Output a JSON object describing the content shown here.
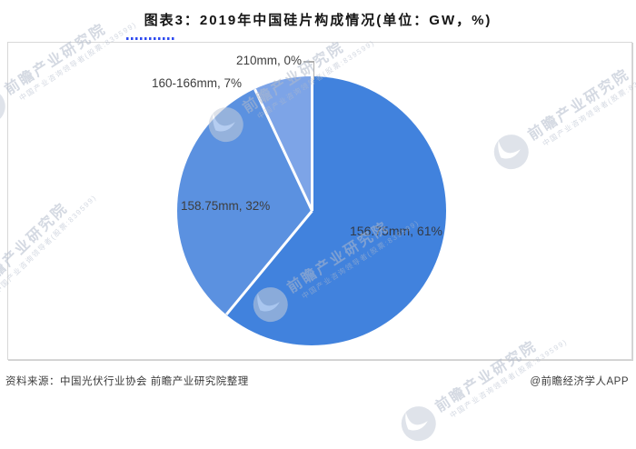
{
  "title": "图表3：2019年中国硅片构成情况(单位：GW，%)",
  "chart_data": {
    "type": "pie",
    "title": "2019年中国硅片构成情况",
    "unit": "GW，%",
    "start_angle_deg": 0,
    "direction": "clockwise",
    "legend": "none (direct data labels)",
    "separator_color": "#FFFFFF",
    "slices": [
      {
        "label": "156.75mm",
        "value": 61,
        "display": "156.75mm, 61%",
        "color": "#4182DD"
      },
      {
        "label": "158.75mm",
        "value": 32,
        "display": "158.75mm, 32%",
        "color": "#5B91E0"
      },
      {
        "label": "160-166mm",
        "value": 7,
        "display": "160-166mm, 7%",
        "color": "#7DA4E7"
      },
      {
        "label": "210mm",
        "value": 0,
        "display": "210mm, 0%",
        "color": "#9DBBEF"
      }
    ]
  },
  "footer": {
    "source": "资料来源：中国光伏行业协会 前瞻产业研究院整理",
    "credit": "@前瞻经济学人APP"
  },
  "watermark": {
    "brand": "前瞻产业研究院",
    "tagline": "中国产业咨询领导者(股票:839599)"
  }
}
